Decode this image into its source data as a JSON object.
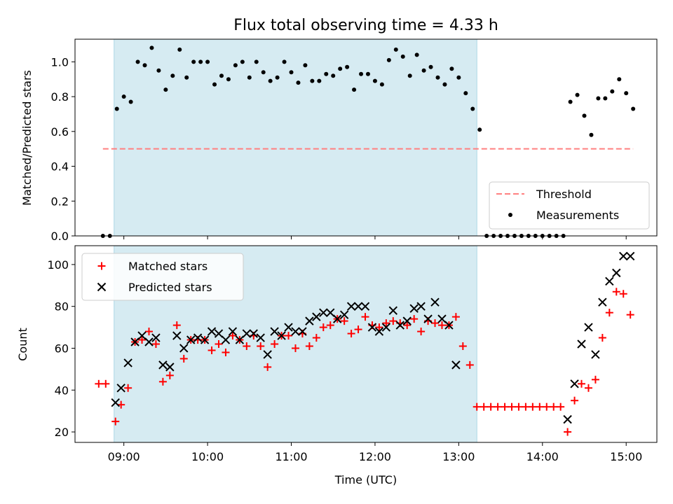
{
  "chart_data": [
    {
      "type": "scatter",
      "title": "Flux total observing time = 4.33 h",
      "xlabel": "",
      "ylabel": "Matched/Predicted stars",
      "xlim": [
        "08:25",
        "15:22"
      ],
      "ylim": [
        0.0,
        1.13
      ],
      "yticks": [
        "0.0",
        "0.2",
        "0.4",
        "0.6",
        "0.8",
        "1.0"
      ],
      "shaded_interval": [
        "08:53",
        "13:13"
      ],
      "threshold": {
        "name": "Threshold",
        "value": 0.5,
        "x_range": [
          "08:45",
          "15:05"
        ],
        "color": "#ff8080"
      },
      "legend": {
        "position": "lower-right",
        "entries": [
          "Threshold",
          "Measurements"
        ]
      },
      "series": [
        {
          "name": "Measurements",
          "color": "#000000",
          "x": [
            "08:45",
            "08:50",
            "08:55",
            "09:00",
            "09:05",
            "09:10",
            "09:15",
            "09:20",
            "09:25",
            "09:30",
            "09:35",
            "09:40",
            "09:45",
            "09:50",
            "09:55",
            "10:00",
            "10:05",
            "10:10",
            "10:15",
            "10:20",
            "10:25",
            "10:30",
            "10:35",
            "10:40",
            "10:45",
            "10:50",
            "10:55",
            "11:00",
            "11:05",
            "11:10",
            "11:15",
            "11:20",
            "11:25",
            "11:30",
            "11:35",
            "11:40",
            "11:45",
            "11:50",
            "11:55",
            "12:00",
            "12:05",
            "12:10",
            "12:15",
            "12:20",
            "12:25",
            "12:30",
            "12:35",
            "12:40",
            "12:45",
            "12:50",
            "12:55",
            "13:00",
            "13:05",
            "13:10",
            "13:15",
            "13:20",
            "13:25",
            "13:30",
            "13:35",
            "13:40",
            "13:45",
            "13:50",
            "13:55",
            "14:00",
            "14:05",
            "14:10",
            "14:15",
            "14:20",
            "14:25",
            "14:30",
            "14:35",
            "14:40",
            "14:45",
            "14:50",
            "14:55",
            "15:00",
            "15:05"
          ],
          "y": [
            0.0,
            0.0,
            0.73,
            0.8,
            0.77,
            1.0,
            0.98,
            1.08,
            0.95,
            0.84,
            0.92,
            1.07,
            0.91,
            1.0,
            1.0,
            1.0,
            0.87,
            0.92,
            0.9,
            0.98,
            1.0,
            0.91,
            1.0,
            0.94,
            0.89,
            0.91,
            1.0,
            0.94,
            0.88,
            0.98,
            0.89,
            0.89,
            0.93,
            0.92,
            0.96,
            0.97,
            0.84,
            0.93,
            0.93,
            0.89,
            0.87,
            1.01,
            1.07,
            1.03,
            0.92,
            1.04,
            0.95,
            0.97,
            0.91,
            0.87,
            0.96,
            0.91,
            0.82,
            0.73,
            0.61,
            0.0,
            0.0,
            0.0,
            0.0,
            0.0,
            0.0,
            0.0,
            0.0,
            0.0,
            0.0,
            0.0,
            0.0,
            0.77,
            0.81,
            0.69,
            0.58,
            0.79,
            0.79,
            0.83,
            0.9,
            0.82,
            0.73
          ]
        }
      ]
    },
    {
      "type": "scatter",
      "title": "",
      "xlabel": "Time (UTC)",
      "ylabel": "Count",
      "xlim": [
        "08:25",
        "15:22"
      ],
      "ylim": [
        15,
        109
      ],
      "xticks": [
        "09:00",
        "10:00",
        "11:00",
        "12:00",
        "13:00",
        "14:00",
        "15:00"
      ],
      "yticks": [
        "20",
        "40",
        "60",
        "80",
        "100"
      ],
      "shaded_interval": [
        "08:53",
        "13:13"
      ],
      "legend": {
        "position": "top-left",
        "entries": [
          "Matched stars",
          "Predicted stars"
        ]
      },
      "series": [
        {
          "name": "Matched stars",
          "color": "#ff0000",
          "marker": "+",
          "x": [
            "08:42",
            "08:47",
            "08:54",
            "08:58",
            "09:03",
            "09:08",
            "09:13",
            "09:18",
            "09:23",
            "09:28",
            "09:33",
            "09:38",
            "09:43",
            "09:48",
            "09:53",
            "09:58",
            "10:03",
            "10:08",
            "10:13",
            "10:18",
            "10:23",
            "10:28",
            "10:33",
            "10:38",
            "10:43",
            "10:48",
            "10:53",
            "10:58",
            "11:03",
            "11:08",
            "11:13",
            "11:18",
            "11:23",
            "11:28",
            "11:33",
            "11:38",
            "11:43",
            "11:48",
            "11:53",
            "11:58",
            "12:03",
            "12:08",
            "12:13",
            "12:18",
            "12:23",
            "12:28",
            "12:33",
            "12:38",
            "12:43",
            "12:48",
            "12:53",
            "12:58",
            "13:03",
            "13:08",
            "13:13",
            "13:18",
            "13:23",
            "13:28",
            "13:33",
            "13:38",
            "13:43",
            "13:48",
            "13:53",
            "13:58",
            "14:03",
            "14:08",
            "14:13",
            "14:18",
            "14:23",
            "14:28",
            "14:33",
            "14:38",
            "14:43",
            "14:48",
            "14:53",
            "14:58",
            "15:03"
          ],
          "y": [
            43,
            43,
            25,
            33,
            41,
            63,
            64,
            68,
            62,
            44,
            47,
            71,
            55,
            64,
            64,
            64,
            59,
            62,
            58,
            66,
            64,
            61,
            66,
            61,
            51,
            62,
            66,
            66,
            60,
            67,
            61,
            65,
            70,
            71,
            74,
            73,
            67,
            69,
            75,
            71,
            70,
            72,
            73,
            72,
            71,
            74,
            68,
            73,
            72,
            71,
            71,
            75,
            61,
            52,
            32,
            32,
            32,
            32,
            32,
            32,
            32,
            32,
            32,
            32,
            32,
            32,
            32,
            20,
            35,
            43,
            41,
            45,
            65,
            77,
            87,
            86,
            76
          ]
        },
        {
          "name": "Predicted stars",
          "color": "#000000",
          "marker": "x",
          "x": [
            "08:54",
            "08:58",
            "09:03",
            "09:08",
            "09:13",
            "09:18",
            "09:23",
            "09:28",
            "09:33",
            "09:38",
            "09:43",
            "09:48",
            "09:53",
            "09:58",
            "10:03",
            "10:08",
            "10:13",
            "10:18",
            "10:23",
            "10:28",
            "10:33",
            "10:38",
            "10:43",
            "10:48",
            "10:53",
            "10:58",
            "11:03",
            "11:08",
            "11:13",
            "11:18",
            "11:23",
            "11:28",
            "11:33",
            "11:38",
            "11:43",
            "11:48",
            "11:53",
            "11:58",
            "12:03",
            "12:08",
            "12:13",
            "12:18",
            "12:23",
            "12:28",
            "12:33",
            "12:38",
            "12:43",
            "12:48",
            "12:53",
            "12:58",
            "13:03",
            "13:08",
            "13:13",
            "14:18",
            "14:23",
            "14:28",
            "14:33",
            "14:38",
            "14:43",
            "14:48",
            "14:53",
            "14:58",
            "15:03"
          ],
          "y": [
            34,
            41,
            53,
            63,
            66,
            63,
            65,
            52,
            51,
            66,
            60,
            64,
            65,
            64,
            68,
            67,
            64,
            68,
            64,
            67,
            67,
            65,
            57,
            68,
            66,
            70,
            68,
            68,
            73,
            75,
            77,
            77,
            74,
            76,
            80,
            80,
            80,
            70,
            68,
            70,
            78,
            71,
            73,
            79,
            80,
            74,
            82,
            74,
            71,
            52,
            null,
            null,
            null,
            26,
            43,
            62,
            70,
            57,
            82,
            92,
            96,
            104,
            104
          ]
        }
      ]
    }
  ]
}
